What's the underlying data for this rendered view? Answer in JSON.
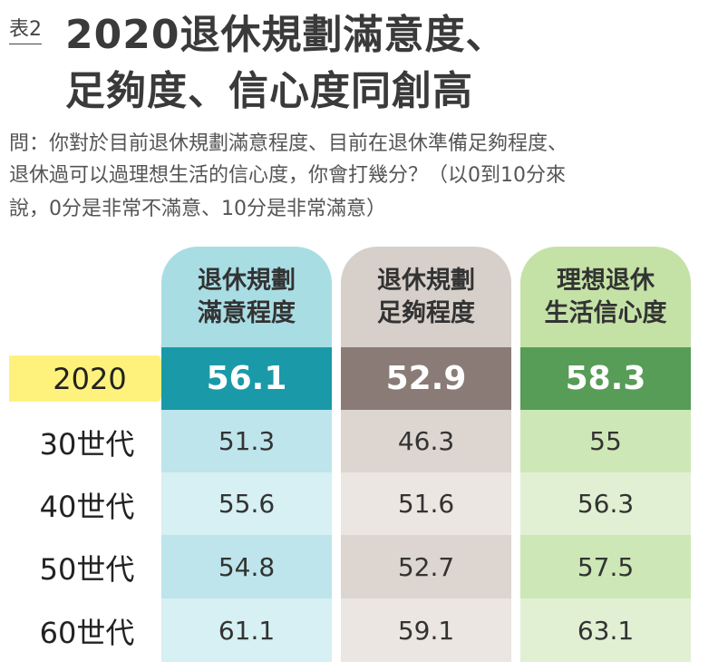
{
  "header": {
    "label": "表2",
    "title": [
      "2020退休規劃滿意度、",
      "足夠度、信心度同創高"
    ]
  },
  "question": [
    "問：你對於目前退休規劃滿意程度、目前在退休準備足夠程度、",
    "退休過可以過理想生活的信心度，你會打幾分？（以0到10分來",
    "說，0分是非常不滿意、10分是非常滿意）"
  ],
  "table": {
    "columns": [
      {
        "label": [
          "退休規劃",
          "滿意程度"
        ],
        "color": "#a9dde4"
      },
      {
        "label": [
          "退休規劃",
          "足夠程度"
        ],
        "color": "#d6cfca"
      },
      {
        "label": [
          "理想退休",
          "生活信心度"
        ],
        "color": "#c4e2a6"
      }
    ],
    "rows": [
      {
        "label": "2020",
        "values": [
          56.1,
          52.9,
          58.3
        ]
      },
      {
        "label": "30世代",
        "values": [
          51.3,
          46.3,
          55
        ]
      },
      {
        "label": "40世代",
        "values": [
          55.6,
          51.6,
          56.3
        ]
      },
      {
        "label": "50世代",
        "values": [
          54.8,
          52.7,
          57.5
        ]
      },
      {
        "label": "60世代",
        "values": [
          61.1,
          59.1,
          63.1
        ]
      }
    ]
  }
}
